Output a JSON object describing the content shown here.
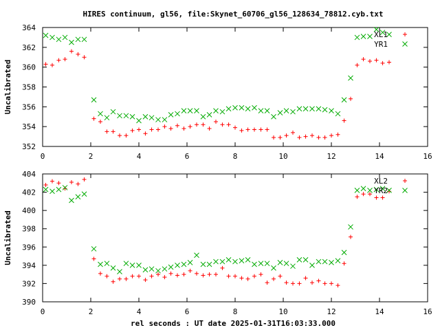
{
  "title": "HIRES continuum, gl56, file:Skynet_60706_gl56_128634_78812.cyb.txt",
  "xlabel": "rel seconds : UT date 2025-01-31T16:03:33.000",
  "colors": {
    "series1": "#ff0000",
    "series2": "#00aa00"
  },
  "chart_data": [
    {
      "type": "scatter",
      "ylabel": "Uncalibrated",
      "xlim": [
        0,
        16
      ],
      "ylim": [
        352,
        364
      ],
      "xticks": [
        "0",
        "2",
        "4",
        "6",
        "8",
        "10",
        "12",
        "14",
        "16"
      ],
      "yticks": [
        "352",
        "354",
        "356",
        "358",
        "360",
        "362",
        "364"
      ],
      "legend_position": "top-right",
      "series": [
        {
          "name": "XL1",
          "marker": "plus",
          "x": [
            0.13,
            0.4,
            0.67,
            0.93,
            1.2,
            1.47,
            1.73,
            2.13,
            2.4,
            2.67,
            2.93,
            3.2,
            3.47,
            3.73,
            4.0,
            4.27,
            4.53,
            4.8,
            5.07,
            5.33,
            5.6,
            5.87,
            6.13,
            6.4,
            6.67,
            6.93,
            7.2,
            7.47,
            7.73,
            8.0,
            8.27,
            8.53,
            8.8,
            9.07,
            9.33,
            9.6,
            9.87,
            10.13,
            10.4,
            10.67,
            10.93,
            11.2,
            11.47,
            11.73,
            12.0,
            12.27,
            12.53,
            12.8,
            13.07,
            13.33,
            13.6,
            13.87,
            14.13,
            14.4
          ],
          "y": [
            360.3,
            360.2,
            360.7,
            360.8,
            361.6,
            361.3,
            361.0,
            354.8,
            354.5,
            353.5,
            353.5,
            353.1,
            353.1,
            353.6,
            353.7,
            353.3,
            353.7,
            353.7,
            354.0,
            353.8,
            354.1,
            353.8,
            354.0,
            354.2,
            354.2,
            353.8,
            354.5,
            354.2,
            354.2,
            353.9,
            353.6,
            353.7,
            353.7,
            353.7,
            353.7,
            352.9,
            352.9,
            353.1,
            353.4,
            352.9,
            353.0,
            353.1,
            352.9,
            352.9,
            353.1,
            353.2,
            354.6,
            356.8,
            360.2,
            360.8,
            360.6,
            360.7,
            360.4,
            360.5
          ]
        },
        {
          "name": "YR1",
          "marker": "cross",
          "x": [
            0.13,
            0.4,
            0.67,
            0.93,
            1.2,
            1.47,
            1.73,
            2.13,
            2.4,
            2.67,
            2.93,
            3.2,
            3.47,
            3.73,
            4.0,
            4.27,
            4.53,
            4.8,
            5.07,
            5.33,
            5.6,
            5.87,
            6.13,
            6.4,
            6.67,
            6.93,
            7.2,
            7.47,
            7.73,
            8.0,
            8.27,
            8.53,
            8.8,
            9.07,
            9.33,
            9.6,
            9.87,
            10.13,
            10.4,
            10.67,
            10.93,
            11.2,
            11.47,
            11.73,
            12.0,
            12.27,
            12.53,
            12.8,
            13.07,
            13.33,
            13.6,
            13.87,
            14.13,
            14.4
          ],
          "y": [
            363.2,
            363.0,
            362.8,
            363.0,
            362.5,
            362.8,
            362.8,
            356.7,
            355.3,
            354.9,
            355.5,
            355.1,
            355.1,
            355.0,
            354.6,
            355.0,
            354.9,
            354.7,
            354.7,
            355.2,
            355.3,
            355.6,
            355.6,
            355.6,
            355.0,
            355.2,
            355.6,
            355.5,
            355.8,
            355.9,
            355.9,
            355.8,
            355.9,
            355.6,
            355.6,
            355.0,
            355.4,
            355.6,
            355.5,
            355.8,
            355.8,
            355.8,
            355.8,
            355.7,
            355.6,
            355.3,
            356.7,
            358.9,
            363.0,
            363.1,
            363.1,
            363.8,
            363.5,
            363.3
          ]
        }
      ]
    },
    {
      "type": "scatter",
      "ylabel": "Uncalibrated",
      "xlim": [
        0,
        16
      ],
      "ylim": [
        390,
        404
      ],
      "xticks": [
        "0",
        "2",
        "4",
        "6",
        "8",
        "10",
        "12",
        "14",
        "16"
      ],
      "yticks": [
        "390",
        "392",
        "394",
        "396",
        "398",
        "400",
        "402",
        "404"
      ],
      "legend_position": "top-right",
      "series": [
        {
          "name": "XL2",
          "marker": "plus",
          "x": [
            0.13,
            0.4,
            0.67,
            0.93,
            1.2,
            1.47,
            1.73,
            2.13,
            2.4,
            2.67,
            2.93,
            3.2,
            3.47,
            3.73,
            4.0,
            4.27,
            4.53,
            4.8,
            5.07,
            5.33,
            5.6,
            5.87,
            6.13,
            6.4,
            6.67,
            6.93,
            7.2,
            7.47,
            7.73,
            8.0,
            8.27,
            8.53,
            8.8,
            9.07,
            9.33,
            9.6,
            9.87,
            10.13,
            10.4,
            10.67,
            10.93,
            11.2,
            11.47,
            11.73,
            12.0,
            12.27,
            12.53,
            12.8,
            13.07,
            13.33,
            13.6,
            13.87,
            14.13,
            14.4
          ],
          "y": [
            402.8,
            403.2,
            403.0,
            402.4,
            403.1,
            402.9,
            403.4,
            394.7,
            393.1,
            392.8,
            392.2,
            392.5,
            392.5,
            392.8,
            392.8,
            392.4,
            392.8,
            393.0,
            392.7,
            393.1,
            392.9,
            393.0,
            393.4,
            393.1,
            392.9,
            393.0,
            393.0,
            393.7,
            392.8,
            392.8,
            392.6,
            392.5,
            392.8,
            393.0,
            392.1,
            392.5,
            392.8,
            392.1,
            392.0,
            392.0,
            392.6,
            392.1,
            392.3,
            392.0,
            392.0,
            391.8,
            394.2,
            397.1,
            401.5,
            401.8,
            401.8,
            401.4,
            401.4,
            402.1
          ]
        },
        {
          "name": "YR2",
          "marker": "cross",
          "x": [
            0.13,
            0.4,
            0.67,
            0.93,
            1.2,
            1.47,
            1.73,
            2.13,
            2.4,
            2.67,
            2.93,
            3.2,
            3.47,
            3.73,
            4.0,
            4.27,
            4.53,
            4.8,
            5.07,
            5.33,
            5.6,
            5.87,
            6.13,
            6.4,
            6.67,
            6.93,
            7.2,
            7.47,
            7.73,
            8.0,
            8.27,
            8.53,
            8.8,
            9.07,
            9.33,
            9.6,
            9.87,
            10.13,
            10.4,
            10.67,
            10.93,
            11.2,
            11.47,
            11.73,
            12.0,
            12.27,
            12.53,
            12.8,
            13.07,
            13.33,
            13.6,
            13.87,
            14.13,
            14.4
          ],
          "y": [
            402.3,
            402.1,
            402.3,
            402.5,
            401.1,
            401.5,
            401.8,
            395.8,
            394.1,
            394.2,
            393.7,
            393.3,
            394.2,
            394.0,
            394.0,
            393.5,
            393.6,
            393.4,
            393.6,
            393.8,
            394.0,
            394.1,
            394.3,
            395.1,
            394.1,
            394.1,
            394.4,
            394.4,
            394.6,
            394.4,
            394.5,
            394.6,
            394.1,
            394.2,
            394.2,
            393.7,
            394.3,
            394.2,
            393.9,
            394.6,
            394.6,
            394.0,
            394.4,
            394.4,
            394.3,
            394.5,
            395.4,
            398.2,
            402.2,
            402.4,
            402.2,
            402.3,
            402.4,
            402.2
          ]
        }
      ]
    }
  ]
}
